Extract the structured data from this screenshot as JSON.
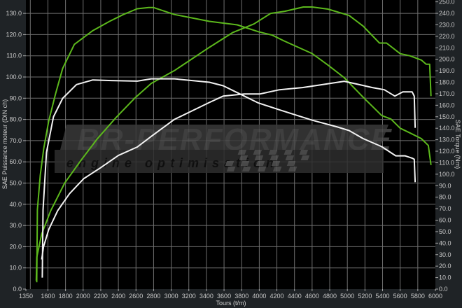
{
  "chart_data": {
    "type": "line",
    "title": "",
    "xlabel": "Tours (t/m)",
    "ylabel_left": "SAE Puissance moteur (DIN ch)",
    "ylabel_right": "SAE Torque (Nm)",
    "xlim": [
      1350,
      6000
    ],
    "ylim_left": [
      0,
      136.3
    ],
    "ylim_right": [
      0,
      251.6
    ],
    "x_ticks": [
      "1350",
      "1600",
      "1800",
      "2000",
      "2200",
      "2400",
      "2600",
      "2800",
      "3000",
      "3200",
      "3400",
      "3600",
      "3800",
      "4000",
      "4200",
      "4400",
      "4600",
      "4800",
      "5000",
      "5200",
      "5400",
      "5600",
      "5800",
      "6000"
    ],
    "y_left_ticks": [
      "0.0",
      "10.0",
      "20.0",
      "30.0",
      "40.0",
      "50.0",
      "60.0",
      "70.0",
      "80.0",
      "90.0",
      "100.0",
      "110.0",
      "120.0",
      "130.0"
    ],
    "y_right_ticks": [
      "0.0",
      "10.0",
      "20.0",
      "30.0",
      "40.0",
      "50.0",
      "60.0",
      "70.0",
      "80.0",
      "90.0",
      "100.0",
      "110.0",
      "120.0",
      "130.0",
      "140.0",
      "150.0",
      "160.0",
      "170.0",
      "180.0",
      "190.0",
      "200.0",
      "210.0",
      "220.0",
      "230.0",
      "240.0",
      "250.0"
    ],
    "grid": true,
    "legend": "none",
    "colors": {
      "tuned": "#5cb81c",
      "stock": "#f2f2f2",
      "plot_bg": "#000000",
      "grid": "#6f6f6f",
      "page_bg": "#1f2326"
    },
    "series": [
      {
        "color": "tuned",
        "axis": "right",
        "x": [
          1473,
          1480,
          1513,
          1552,
          1608,
          1687,
          1767,
          1900,
          2110,
          2300,
          2457,
          2615,
          2745,
          2800,
          3036,
          3433,
          3750,
          3990,
          4147,
          4280,
          4600,
          4780,
          4965,
          5180,
          5390,
          5495,
          5600,
          5710,
          5840,
          5920,
          5950
        ],
        "y": [
          6,
          69,
          99,
          122,
          146,
          170,
          192,
          213,
          225,
          233,
          239,
          244,
          245,
          245,
          239,
          233,
          230,
          224,
          221,
          216,
          205,
          195,
          184,
          167,
          151,
          148,
          140,
          136,
          131,
          125,
          108
        ]
      },
      {
        "color": "tuned",
        "axis": "left",
        "x": [
          1468,
          1473,
          1530,
          1632,
          1790,
          1980,
          2163,
          2376,
          2585,
          2774,
          3036,
          3433,
          3700,
          3940,
          4130,
          4290,
          4500,
          4600,
          4780,
          5020,
          5180,
          5365,
          5445,
          5600,
          5710,
          5840,
          5895,
          5935,
          5950
        ],
        "y": [
          4,
          15,
          26,
          37,
          50,
          61,
          71,
          81,
          90,
          97,
          103,
          114,
          121,
          125,
          130,
          131,
          133,
          133,
          132,
          129,
          124,
          116,
          116,
          111,
          110,
          108,
          106,
          106,
          91
        ]
      },
      {
        "color": "stock",
        "axis": "right",
        "x": [
          1536,
          1545,
          1584,
          1663,
          1767,
          1925,
          2110,
          2322,
          2615,
          2774,
          3036,
          3433,
          3590,
          3750,
          3990,
          4230,
          4600,
          4890,
          5020,
          5180,
          5390,
          5550,
          5655,
          5735,
          5760,
          5770
        ],
        "y": [
          10,
          69,
          119,
          150,
          166,
          178,
          182,
          181.5,
          181,
          183,
          183,
          180,
          177,
          171,
          162,
          156,
          147,
          141,
          138,
          131,
          124,
          116,
          116,
          114,
          113,
          93
        ]
      },
      {
        "color": "stock",
        "axis": "left",
        "x": [
          1530,
          1550,
          1608,
          1711,
          1846,
          2005,
          2190,
          2400,
          2615,
          2774,
          3036,
          3433,
          3590,
          3830,
          4010,
          4230,
          4490,
          4650,
          4965,
          5180,
          5285,
          5420,
          5540,
          5630,
          5735,
          5760,
          5770
        ],
        "y": [
          14,
          20,
          28,
          37,
          45,
          52,
          57,
          63,
          67,
          72,
          80,
          88,
          91,
          92,
          92,
          94,
          95,
          96,
          98,
          96,
          95,
          94,
          91,
          93,
          93,
          91,
          76
        ]
      }
    ]
  },
  "logo": {
    "brand": "BR-Performance",
    "tagline": "engine optimisation"
  }
}
